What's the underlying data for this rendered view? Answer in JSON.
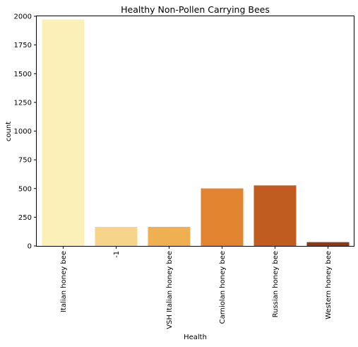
{
  "chart_data": {
    "type": "bar",
    "title": "Healthy Non-Pollen Carrying Bees",
    "xlabel": "Health",
    "ylabel": "count",
    "categories": [
      "Italian honey bee",
      "-1",
      "VSH Italian honey bee",
      "Carniolan honey bee",
      "Russian honey bee",
      "Western honey bee"
    ],
    "values": [
      1972,
      166,
      166,
      501,
      527,
      33
    ],
    "colors": [
      "#fbf0b8",
      "#f6d58b",
      "#efb052",
      "#e2842f",
      "#c05c20",
      "#8e3a10"
    ],
    "ylim": [
      0,
      2000
    ],
    "yticks": [
      0,
      250,
      500,
      750,
      1000,
      1250,
      1500,
      1750,
      2000
    ],
    "grid": false,
    "legend": "none"
  }
}
